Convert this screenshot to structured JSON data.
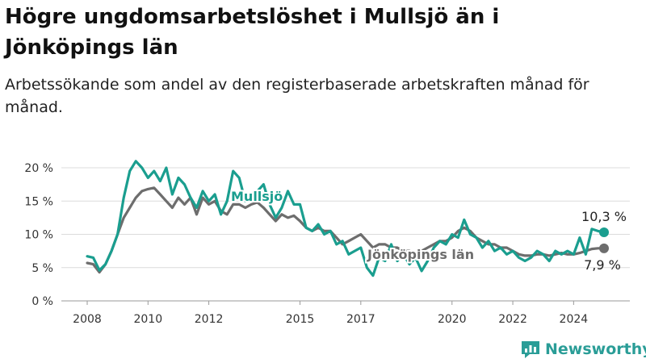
{
  "title": "Högre ungdomsarbetslöshet i Mullsjö än i Jönköpings län",
  "subtitle": "Arbetssökande som andel av den registerbaserade arbetskraften månad för månad.",
  "brand": "Newsworthy",
  "chart_data": {
    "type": "line",
    "title": "Högre ungdomsarbetslöshet i Mullsjö än i Jönköpings län",
    "subtitle": "Arbetssökande som andel av den registerbaserade arbetskraften månad för månad.",
    "xlabel": "",
    "ylabel": "",
    "xlim": [
      2008,
      2025
    ],
    "ylim": [
      0,
      20
    ],
    "grid": true,
    "yticks": [
      0,
      5,
      10,
      15,
      20
    ],
    "ytick_labels": [
      "0 %",
      "5 %",
      "10 %",
      "15 %",
      "20 %"
    ],
    "xticks": [
      2008,
      2010,
      2012,
      2015,
      2017,
      2020,
      2022,
      2024
    ],
    "xtick_labels": [
      "2008",
      "2010",
      "2012",
      "2015",
      "2017",
      "2020",
      "2022",
      "2024"
    ],
    "series": [
      {
        "name": "Mullsjö",
        "color": "#1a9e8f",
        "points": [
          [
            2008.0,
            6.7
          ],
          [
            2008.2,
            6.5
          ],
          [
            2008.4,
            4.6
          ],
          [
            2008.6,
            5.5
          ],
          [
            2008.8,
            7.5
          ],
          [
            2009.0,
            10.0
          ],
          [
            2009.2,
            15.5
          ],
          [
            2009.4,
            19.5
          ],
          [
            2009.6,
            21.0
          ],
          [
            2009.8,
            20.0
          ],
          [
            2010.0,
            18.5
          ],
          [
            2010.2,
            19.5
          ],
          [
            2010.4,
            18.0
          ],
          [
            2010.6,
            20.0
          ],
          [
            2010.8,
            16.0
          ],
          [
            2011.0,
            18.5
          ],
          [
            2011.2,
            17.5
          ],
          [
            2011.4,
            15.5
          ],
          [
            2011.6,
            14.0
          ],
          [
            2011.8,
            16.5
          ],
          [
            2012.0,
            15.0
          ],
          [
            2012.2,
            16.0
          ],
          [
            2012.4,
            13.0
          ],
          [
            2012.6,
            15.0
          ],
          [
            2012.8,
            19.5
          ],
          [
            2013.0,
            18.5
          ],
          [
            2013.2,
            15.0
          ],
          [
            2013.4,
            15.5
          ],
          [
            2013.6,
            16.5
          ],
          [
            2013.8,
            17.5
          ],
          [
            2014.0,
            14.5
          ],
          [
            2014.2,
            12.5
          ],
          [
            2014.4,
            14.0
          ],
          [
            2014.6,
            16.5
          ],
          [
            2014.8,
            14.5
          ],
          [
            2015.0,
            14.5
          ],
          [
            2015.2,
            11.0
          ],
          [
            2015.4,
            10.5
          ],
          [
            2015.6,
            11.5
          ],
          [
            2015.8,
            10.0
          ],
          [
            2016.0,
            10.5
          ],
          [
            2016.2,
            8.5
          ],
          [
            2016.4,
            9.0
          ],
          [
            2016.6,
            7.0
          ],
          [
            2016.8,
            7.5
          ],
          [
            2017.0,
            8.0
          ],
          [
            2017.2,
            5.0
          ],
          [
            2017.4,
            3.8
          ],
          [
            2017.6,
            6.5
          ],
          [
            2017.8,
            6.0
          ],
          [
            2018.0,
            8.5
          ],
          [
            2018.2,
            6.0
          ],
          [
            2018.4,
            7.0
          ],
          [
            2018.6,
            5.5
          ],
          [
            2018.8,
            6.5
          ],
          [
            2019.0,
            4.5
          ],
          [
            2019.2,
            6.0
          ],
          [
            2019.4,
            8.0
          ],
          [
            2019.6,
            9.0
          ],
          [
            2019.8,
            8.5
          ],
          [
            2020.0,
            10.0
          ],
          [
            2020.2,
            9.5
          ],
          [
            2020.4,
            12.2
          ],
          [
            2020.6,
            10.0
          ],
          [
            2020.8,
            9.5
          ],
          [
            2021.0,
            8.0
          ],
          [
            2021.2,
            9.0
          ],
          [
            2021.4,
            7.5
          ],
          [
            2021.6,
            8.0
          ],
          [
            2021.8,
            7.0
          ],
          [
            2022.0,
            7.5
          ],
          [
            2022.2,
            6.5
          ],
          [
            2022.4,
            6.0
          ],
          [
            2022.6,
            6.5
          ],
          [
            2022.8,
            7.5
          ],
          [
            2023.0,
            7.0
          ],
          [
            2023.2,
            6.0
          ],
          [
            2023.4,
            7.5
          ],
          [
            2023.6,
            7.0
          ],
          [
            2023.8,
            7.5
          ],
          [
            2024.0,
            7.0
          ],
          [
            2024.2,
            9.5
          ],
          [
            2024.4,
            7.0
          ],
          [
            2024.6,
            10.8
          ],
          [
            2024.8,
            10.5
          ],
          [
            2025.0,
            10.3
          ]
        ]
      },
      {
        "name": "Jönköpings län",
        "color": "#6d6d6d",
        "points": [
          [
            2008.0,
            5.7
          ],
          [
            2008.2,
            5.5
          ],
          [
            2008.4,
            4.3
          ],
          [
            2008.6,
            5.5
          ],
          [
            2008.8,
            7.5
          ],
          [
            2009.0,
            10.0
          ],
          [
            2009.2,
            12.5
          ],
          [
            2009.4,
            14.0
          ],
          [
            2009.6,
            15.5
          ],
          [
            2009.8,
            16.5
          ],
          [
            2010.0,
            16.8
          ],
          [
            2010.2,
            17.0
          ],
          [
            2010.4,
            16.0
          ],
          [
            2010.6,
            15.0
          ],
          [
            2010.8,
            14.0
          ],
          [
            2011.0,
            15.5
          ],
          [
            2011.2,
            14.5
          ],
          [
            2011.4,
            15.5
          ],
          [
            2011.6,
            13.0
          ],
          [
            2011.8,
            15.5
          ],
          [
            2012.0,
            14.5
          ],
          [
            2012.2,
            15.0
          ],
          [
            2012.4,
            13.5
          ],
          [
            2012.6,
            13.0
          ],
          [
            2012.8,
            14.5
          ],
          [
            2013.0,
            14.5
          ],
          [
            2013.2,
            14.0
          ],
          [
            2013.4,
            14.5
          ],
          [
            2013.6,
            14.8
          ],
          [
            2013.8,
            14.0
          ],
          [
            2014.0,
            13.0
          ],
          [
            2014.2,
            12.0
          ],
          [
            2014.4,
            13.0
          ],
          [
            2014.6,
            12.5
          ],
          [
            2014.8,
            12.8
          ],
          [
            2015.0,
            12.0
          ],
          [
            2015.2,
            11.0
          ],
          [
            2015.4,
            10.5
          ],
          [
            2015.6,
            11.0
          ],
          [
            2015.8,
            10.5
          ],
          [
            2016.0,
            10.5
          ],
          [
            2016.2,
            9.5
          ],
          [
            2016.4,
            8.5
          ],
          [
            2016.6,
            9.0
          ],
          [
            2016.8,
            9.5
          ],
          [
            2017.0,
            10.0
          ],
          [
            2017.2,
            9.0
          ],
          [
            2017.4,
            8.0
          ],
          [
            2017.6,
            8.5
          ],
          [
            2017.8,
            8.5
          ],
          [
            2018.0,
            8.0
          ],
          [
            2018.2,
            8.0
          ],
          [
            2018.4,
            7.5
          ],
          [
            2018.6,
            7.5
          ],
          [
            2018.8,
            7.0
          ],
          [
            2019.0,
            7.5
          ],
          [
            2019.2,
            8.0
          ],
          [
            2019.4,
            8.5
          ],
          [
            2019.6,
            9.0
          ],
          [
            2019.8,
            9.0
          ],
          [
            2020.0,
            9.5
          ],
          [
            2020.2,
            10.5
          ],
          [
            2020.4,
            11.0
          ],
          [
            2020.6,
            10.5
          ],
          [
            2020.8,
            9.5
          ],
          [
            2021.0,
            9.0
          ],
          [
            2021.2,
            8.5
          ],
          [
            2021.4,
            8.5
          ],
          [
            2021.6,
            8.0
          ],
          [
            2021.8,
            8.0
          ],
          [
            2022.0,
            7.5
          ],
          [
            2022.2,
            7.0
          ],
          [
            2022.4,
            6.8
          ],
          [
            2022.6,
            6.8
          ],
          [
            2022.8,
            7.0
          ],
          [
            2023.0,
            7.0
          ],
          [
            2023.2,
            6.8
          ],
          [
            2023.4,
            7.0
          ],
          [
            2023.6,
            7.2
          ],
          [
            2023.8,
            7.0
          ],
          [
            2024.0,
            7.0
          ],
          [
            2024.2,
            7.2
          ],
          [
            2024.4,
            7.5
          ],
          [
            2024.6,
            7.8
          ],
          [
            2024.8,
            7.9
          ],
          [
            2025.0,
            7.9
          ]
        ]
      }
    ],
    "annotations": [
      {
        "text": "Mullsjö",
        "series": "Mullsjö"
      },
      {
        "text": "Jönköpings län",
        "series": "Jönköpings län"
      },
      {
        "text": "10,3 %",
        "series": "Mullsjö"
      },
      {
        "text": "7,9 %",
        "series": "Jönköpings län"
      }
    ]
  }
}
